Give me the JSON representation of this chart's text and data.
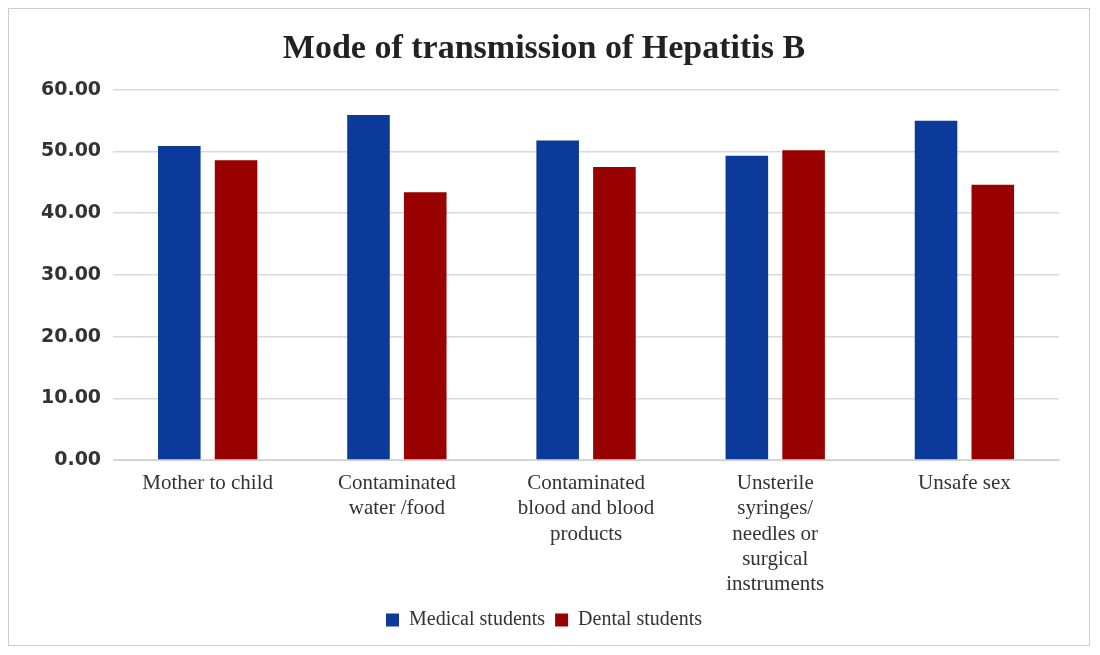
{
  "chart_data": {
    "type": "bar",
    "title": "Mode of transmission of Hepatitis B",
    "categories": [
      "Mother to child",
      "Contaminated water /food",
      "Contaminated blood and blood products",
      "Unsterile syringes/ needles or surgical instruments",
      "Unsafe sex"
    ],
    "series": [
      {
        "name": "Medical students",
        "color": "#0b3a9a",
        "values": [
          50.9,
          55.9,
          51.8,
          49.3,
          55.0
        ]
      },
      {
        "name": "Dental students",
        "color": "#990000",
        "values": [
          48.6,
          43.4,
          47.5,
          50.2,
          44.6
        ]
      }
    ],
    "ylim": [
      0,
      60
    ],
    "yticks": [
      {
        "value": 0,
        "label": "0.00"
      },
      {
        "value": 10,
        "label": "10.00"
      },
      {
        "value": 20,
        "label": "20.00"
      },
      {
        "value": 30,
        "label": "30.00"
      },
      {
        "value": 40,
        "label": "40.00"
      },
      {
        "value": 50,
        "label": "50.00"
      },
      {
        "value": 60,
        "label": "60.00"
      }
    ],
    "grid": "y",
    "legend": "bottom"
  }
}
